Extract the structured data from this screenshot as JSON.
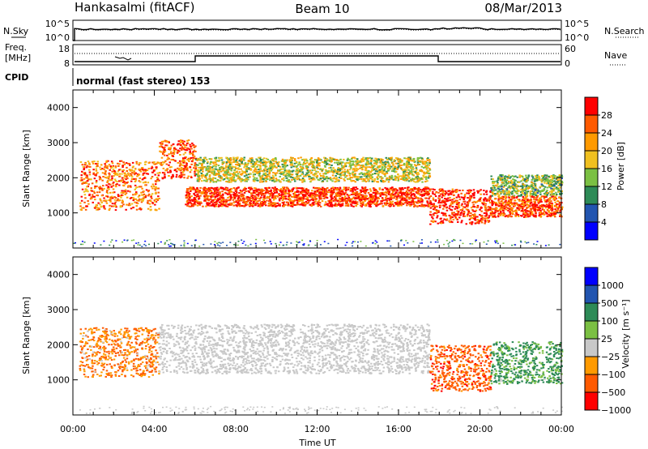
{
  "header": {
    "station": "Hankasalmi (fitACF)",
    "beam": "Beam 10",
    "date": "08/Mar/2013"
  },
  "top_panels": {
    "nsky_label": "N.Sky",
    "nsearch_label": "N.Search",
    "noise_tick_top": "10^5",
    "noise_tick_bottom": "10^0",
    "noise_right_top": "10^5",
    "noise_right_bottom": "10^0",
    "freq_label_1": "Freq.",
    "freq_label_2": "[MHz]",
    "freq_tick_top": "18",
    "freq_tick_bottom": "8",
    "nave_label": "Nave",
    "nave_tick_top": "60",
    "nave_tick_bottom": "0",
    "cpid_label": "CPID",
    "cpid_text": "normal (fast stereo) 153"
  },
  "colors": {
    "power": [
      "#0000ff",
      "#2255b0",
      "#2e8b57",
      "#7bc043",
      "#f0c020",
      "#ff9a00",
      "#ff5a00",
      "#ff0000"
    ],
    "velocity": [
      "#ff0000",
      "#ff5a00",
      "#ff9a00",
      "#c8c8c8",
      "#7bc043",
      "#2e8b57",
      "#2255b0",
      "#0000ff"
    ],
    "ground_gray": "#c8c8c8"
  },
  "chart_data": [
    {
      "type": "heatmap",
      "panel": "power",
      "ylabel": "Slant Range [km]",
      "ylim": [
        0,
        4500
      ],
      "yticks": [
        "1000",
        "2000",
        "3000",
        "4000"
      ],
      "colorbar_label": "Power [dB]",
      "colorbar_range": [
        0,
        32
      ],
      "colorbar_ticks": [
        "4",
        "8",
        "12",
        "16",
        "20",
        "24",
        "28"
      ],
      "bands": [
        {
          "t0": 0.3,
          "t1": 4.2,
          "r0": 1100,
          "r1": 2500,
          "value": 24
        },
        {
          "t0": 4.2,
          "t1": 6.0,
          "r0": 2000,
          "r1": 3100,
          "value": 26
        },
        {
          "t0": 5.5,
          "t1": 17.5,
          "r0": 1200,
          "r1": 1750,
          "value": 28
        },
        {
          "t0": 6.0,
          "t1": 17.5,
          "r0": 1900,
          "r1": 2600,
          "value": 17
        },
        {
          "t0": 17.5,
          "t1": 20.5,
          "r0": 700,
          "r1": 1700,
          "value": 29
        },
        {
          "t0": 20.5,
          "t1": 24.0,
          "r0": 900,
          "r1": 1500,
          "value": 27
        },
        {
          "t0": 20.5,
          "t1": 24.0,
          "r0": 1500,
          "r1": 2100,
          "value": 14
        }
      ]
    },
    {
      "type": "heatmap",
      "panel": "velocity",
      "ylabel": "Slant Range [km]",
      "ylim": [
        0,
        4500
      ],
      "yticks": [
        "1000",
        "2000",
        "3000",
        "4000"
      ],
      "colorbar_label": "Velocity [m s⁻¹]",
      "colorbar_ticks": [
        "1000",
        "500",
        "100",
        "25",
        "−25",
        "−100",
        "−500",
        "−1000"
      ],
      "xlabel": "Time UT",
      "xlim": [
        0,
        24
      ],
      "xticks": [
        "00:00",
        "04:00",
        "08:00",
        "12:00",
        "16:00",
        "20:00",
        "00:00"
      ],
      "bands": [
        {
          "t0": 0.3,
          "t1": 4.2,
          "r0": 1100,
          "r1": 2500,
          "value": -100
        },
        {
          "t0": 4.2,
          "t1": 17.5,
          "r0": 1200,
          "r1": 2600,
          "value": 0
        },
        {
          "t0": 17.5,
          "t1": 20.5,
          "r0": 700,
          "r1": 2000,
          "value": -300
        },
        {
          "t0": 20.5,
          "t1": 24.0,
          "r0": 900,
          "r1": 2100,
          "value": 150
        }
      ]
    }
  ]
}
